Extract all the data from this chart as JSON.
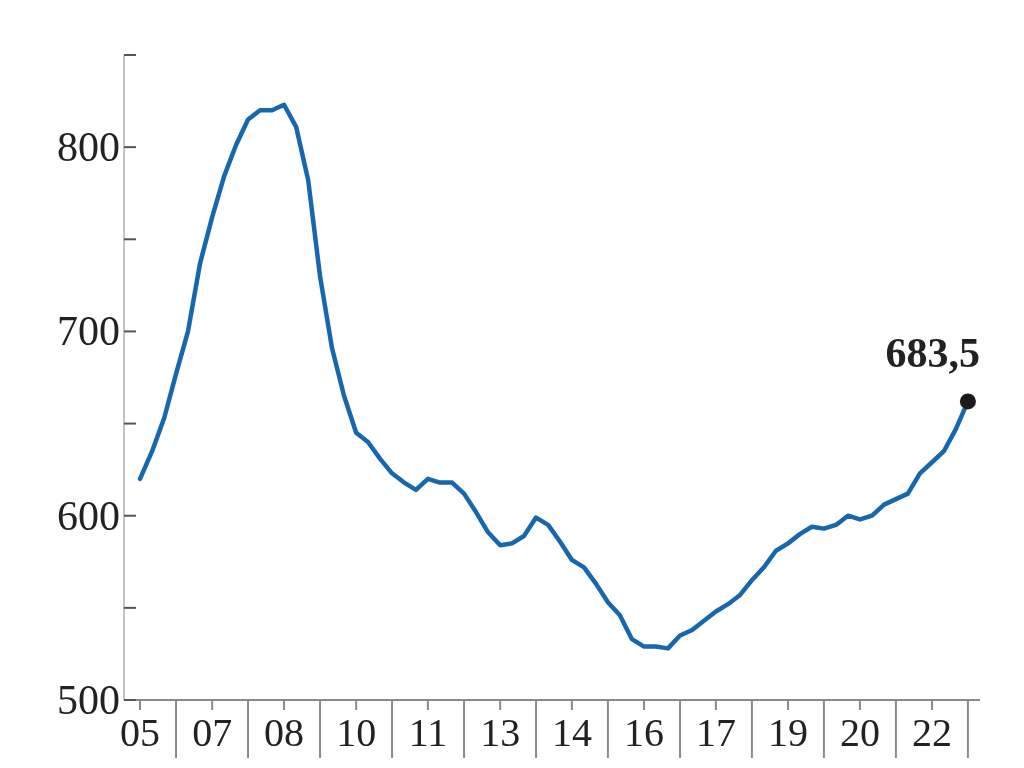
{
  "chart_data": {
    "type": "line",
    "x": [
      "2005-07",
      "2005-10",
      "2006-01",
      "2006-04",
      "2006-07",
      "2006-10",
      "2007-01",
      "2007-04",
      "2007-07",
      "2007-10",
      "2008-01",
      "2008-04",
      "2008-07",
      "2008-10",
      "2009-01",
      "2009-04",
      "2009-07",
      "2009-10",
      "2010-01",
      "2010-04",
      "2010-07",
      "2010-10",
      "2011-01",
      "2011-04",
      "2011-07",
      "2011-10",
      "2012-01",
      "2012-04",
      "2012-07",
      "2012-10",
      "2013-01",
      "2013-04",
      "2013-07",
      "2013-10",
      "2014-01",
      "2014-04",
      "2014-07",
      "2014-10",
      "2015-01",
      "2015-04",
      "2015-07",
      "2015-10",
      "2016-01",
      "2016-04",
      "2016-07",
      "2016-10",
      "2017-01",
      "2017-04",
      "2017-07",
      "2017-10",
      "2018-01",
      "2018-04",
      "2018-07",
      "2018-10",
      "2019-01",
      "2019-04",
      "2019-07",
      "2019-10",
      "2020-01",
      "2020-04",
      "2020-07",
      "2020-10",
      "2021-01",
      "2021-04",
      "2021-07",
      "2021-10",
      "2022-01",
      "2022-04",
      "2022-07",
      "2022-10"
    ],
    "series": [
      {
        "type": "line",
        "color": "#1767ae",
        "values": [
          620,
          635,
          653,
          677,
          700,
          737,
          762,
          784,
          801,
          815,
          820,
          820,
          823,
          811,
          782,
          730,
          691,
          665,
          645,
          640,
          631,
          623,
          618,
          614,
          620,
          618,
          618,
          612,
          602,
          591,
          584,
          585,
          589,
          599,
          595,
          586,
          576,
          572,
          563,
          553,
          546,
          533,
          529,
          529,
          528,
          535,
          538,
          543,
          548,
          552,
          557,
          565,
          572,
          581,
          585,
          590,
          594,
          593,
          595,
          600,
          598,
          600,
          606,
          609,
          612,
          623,
          629,
          635,
          647,
          662
        ]
      },
      {
        "type": "scatter",
        "color": "#1a1a1a",
        "x": [
          "2022-10"
        ],
        "values": [
          662
        ]
      }
    ],
    "xlim": [
      "2005-03",
      "2023-01"
    ],
    "xticks": [
      {
        "value": "2005-07",
        "label": "05"
      },
      {
        "value": "2006-04",
        "label": null
      },
      {
        "value": "2007-01",
        "label": "07"
      },
      {
        "value": "2007-10",
        "label": null
      },
      {
        "value": "2008-07",
        "label": "08"
      },
      {
        "value": "2009-04",
        "label": null
      },
      {
        "value": "2010-01",
        "label": "10"
      },
      {
        "value": "2010-10",
        "label": null
      },
      {
        "value": "2011-07",
        "label": "11"
      },
      {
        "value": "2012-04",
        "label": null
      },
      {
        "value": "2013-01",
        "label": "13"
      },
      {
        "value": "2013-10",
        "label": null
      },
      {
        "value": "2014-07",
        "label": "14"
      },
      {
        "value": "2015-04",
        "label": null
      },
      {
        "value": "2016-01",
        "label": "16"
      },
      {
        "value": "2016-10",
        "label": null
      },
      {
        "value": "2017-07",
        "label": "17"
      },
      {
        "value": "2018-04",
        "label": null
      },
      {
        "value": "2019-01",
        "label": "19"
      },
      {
        "value": "2019-10",
        "label": null
      },
      {
        "value": "2020-07",
        "label": "20"
      },
      {
        "value": "2021-04",
        "label": null
      },
      {
        "value": "2022-01",
        "label": "22"
      },
      {
        "value": "2022-10",
        "label": null
      }
    ],
    "ylim": [
      500,
      850
    ],
    "yticks": [
      500,
      {
        "value": 550,
        "label": null
      },
      600,
      {
        "value": 650,
        "label": null
      },
      700,
      {
        "value": 750,
        "label": null
      },
      800,
      {
        "value": 850,
        "label": null
      }
    ],
    "annotations": [
      {
        "text": "683,5",
        "x": "2022-10",
        "y": 662
      }
    ]
  }
}
